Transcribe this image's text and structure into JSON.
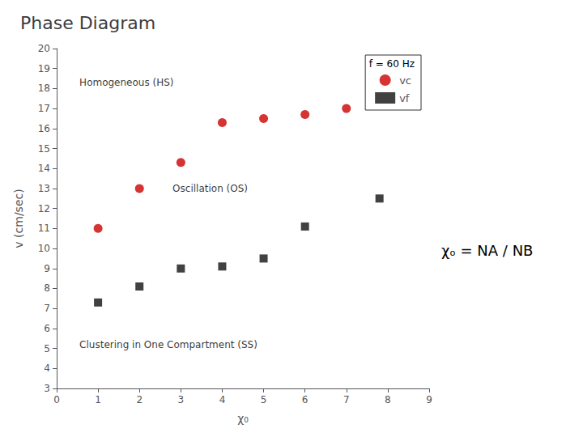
{
  "chart_data": {
    "type": "scatter",
    "title": "Phase Diagram",
    "x_label": "χ₀",
    "y_label": "v (cm/sec)",
    "xlim": [
      0,
      9
    ],
    "ylim": [
      3,
      20
    ],
    "xticks": [
      0,
      1,
      2,
      3,
      4,
      5,
      6,
      7,
      8,
      9
    ],
    "yticks": [
      3,
      4,
      5,
      6,
      7,
      8,
      9,
      10,
      11,
      12,
      13,
      14,
      15,
      16,
      17,
      18,
      19,
      20
    ],
    "grid": false,
    "legend": "upper right",
    "legend_title": "f = 60 Hz",
    "series": [
      {
        "name": "vc",
        "color": "#cc0000",
        "marker": "circle",
        "x": [
          1,
          2,
          3,
          4,
          5,
          6,
          7
        ],
        "values": [
          11.0,
          13.0,
          14.3,
          16.3,
          16.5,
          16.7,
          17.0
        ]
      },
      {
        "name": "vf",
        "color": "#111111",
        "marker": "square",
        "x": [
          1,
          2,
          3,
          4,
          5,
          6,
          7.8
        ],
        "values": [
          7.3,
          8.1,
          9.0,
          9.1,
          9.5,
          11.1,
          12.5
        ]
      }
    ],
    "annotations": [
      {
        "text": "Homogeneous (HS)",
        "x": 0.55,
        "y": 18.3
      },
      {
        "text": "Oscillation (OS)",
        "x": 2.8,
        "y": 13.0
      },
      {
        "text": "Clustering in One Compartment (SS)",
        "x": 0.55,
        "y": 5.2
      },
      {
        "text": "χₒ = NA / NB"
      }
    ]
  }
}
